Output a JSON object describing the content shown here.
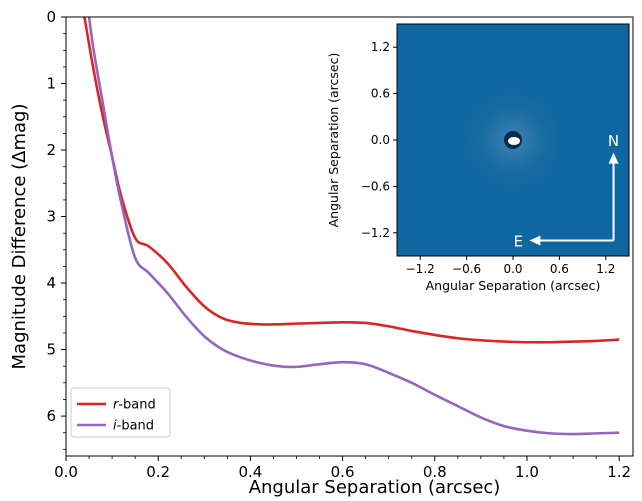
{
  "chart_data": [
    {
      "type": "line",
      "title": "",
      "xlabel": "Angular Separation (arcsec)",
      "ylabel": "Magnitude Difference (Δmag)",
      "xlim": [
        0.0,
        1.23
      ],
      "ylim": [
        6.6,
        0
      ],
      "y_inverted": true,
      "xticks": [
        0.0,
        0.2,
        0.4,
        0.6,
        0.8,
        1.0,
        1.2
      ],
      "xtick_labels": [
        "0.0",
        "0.2",
        "0.4",
        "0.6",
        "0.8",
        "1.0",
        "1.2"
      ],
      "yticks": [
        0,
        1,
        2,
        3,
        4,
        5,
        6
      ],
      "ytick_labels": [
        "0",
        "1",
        "2",
        "3",
        "4",
        "5",
        "6"
      ],
      "grid": false,
      "legend": {
        "position": "lower-left",
        "entries": [
          {
            "italic": "r",
            "rest": "-band",
            "color": "#d62728"
          },
          {
            "italic": "i",
            "rest": "-band",
            "color": "#9467bd"
          }
        ]
      },
      "series": [
        {
          "name": "r-band",
          "color": "#d62728",
          "x": [
            0.04,
            0.06,
            0.08,
            0.1,
            0.12,
            0.15,
            0.18,
            0.22,
            0.26,
            0.3,
            0.34,
            0.38,
            0.42,
            0.46,
            0.5,
            0.55,
            0.6,
            0.65,
            0.7,
            0.75,
            0.8,
            0.85,
            0.9,
            0.95,
            1.0,
            1.05,
            1.1,
            1.15,
            1.2
          ],
          "y": [
            0.0,
            0.8,
            1.5,
            2.1,
            2.7,
            3.32,
            3.45,
            3.7,
            4.05,
            4.35,
            4.53,
            4.6,
            4.62,
            4.62,
            4.61,
            4.6,
            4.59,
            4.6,
            4.65,
            4.72,
            4.78,
            4.83,
            4.86,
            4.88,
            4.89,
            4.89,
            4.88,
            4.87,
            4.85
          ]
        },
        {
          "name": "i-band",
          "color": "#9467bd",
          "x": [
            0.05,
            0.06,
            0.08,
            0.1,
            0.12,
            0.15,
            0.18,
            0.22,
            0.26,
            0.3,
            0.34,
            0.38,
            0.42,
            0.46,
            0.5,
            0.55,
            0.6,
            0.65,
            0.7,
            0.75,
            0.8,
            0.85,
            0.9,
            0.95,
            1.0,
            1.05,
            1.1,
            1.15,
            1.2
          ],
          "y": [
            0.0,
            0.5,
            1.3,
            2.1,
            2.8,
            3.62,
            3.85,
            4.15,
            4.5,
            4.8,
            5.0,
            5.12,
            5.2,
            5.25,
            5.26,
            5.22,
            5.19,
            5.22,
            5.35,
            5.5,
            5.68,
            5.85,
            6.02,
            6.15,
            6.22,
            6.26,
            6.27,
            6.26,
            6.25
          ]
        }
      ]
    },
    {
      "type": "heatmap",
      "title": "",
      "xlabel": "Angular Separation (arcsec)",
      "ylabel": "Angular Separation (arcsec)",
      "xlim": [
        -1.5,
        1.5
      ],
      "ylim": [
        -1.5,
        1.5
      ],
      "xticks": [
        -1.2,
        -0.6,
        0.0,
        0.6,
        1.2
      ],
      "xtick_labels": [
        "−1.2",
        "−0.6",
        "0.0",
        "0.6",
        "1.2"
      ],
      "yticks": [
        -1.2,
        -0.6,
        0.0,
        0.6,
        1.2
      ],
      "ytick_labels": [
        "−1.2",
        "−0.6",
        "0.0",
        "0.6",
        "1.2"
      ],
      "background_color": "#0f67a0",
      "compass": {
        "north_label": "N",
        "east_label": "E"
      }
    }
  ]
}
